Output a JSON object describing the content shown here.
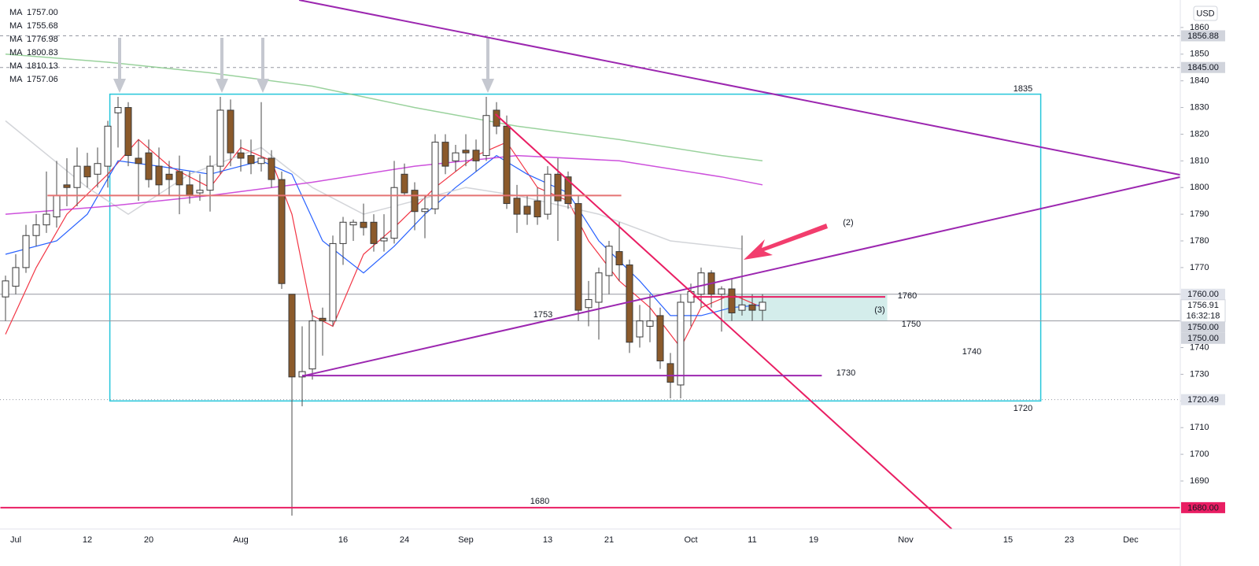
{
  "chart_data": {
    "type": "candlestick",
    "currency": "USD",
    "up_color": "#ffffff",
    "down_color": "#8b5a2b",
    "categories": [
      null,
      "Jul",
      null,
      null,
      null,
      null,
      null,
      null,
      "12",
      null,
      null,
      null,
      null,
      null,
      "20",
      null,
      null,
      null,
      null,
      null,
      null,
      null,
      null,
      "Aug",
      null,
      null,
      null,
      null,
      null,
      null,
      null,
      null,
      null,
      "16",
      null,
      null,
      null,
      null,
      null,
      "24",
      null,
      null,
      null,
      null,
      null,
      "Sep",
      null,
      null,
      null,
      null,
      null,
      null,
      null,
      "13",
      null,
      null,
      null,
      null,
      null,
      "21",
      null,
      null,
      null,
      null,
      null,
      null,
      null,
      "Oct",
      null,
      null,
      null,
      null,
      null,
      "11",
      null,
      null,
      null,
      null,
      null,
      "19",
      null,
      null,
      null,
      null,
      null,
      null,
      null,
      null,
      "Nov",
      null,
      null,
      null,
      null,
      null,
      null,
      null,
      null,
      null,
      "15",
      null,
      null,
      null,
      null,
      null,
      "23",
      null,
      null,
      null,
      null,
      null,
      "Dec",
      null,
      null,
      null,
      null
    ],
    "open": [
      1759,
      1763,
      1770,
      1782,
      1786,
      1789,
      1801,
      1800,
      1808,
      1805,
      1808,
      1828,
      1830,
      1811,
      1813,
      1808,
      1805,
      1806,
      1801,
      1798,
      1799,
      1808,
      1829,
      1813,
      1812,
      1809,
      1811,
      1803,
      1760,
      1729,
      1732,
      1751,
      1750,
      1779,
      1786,
      1787,
      1787,
      1780,
      1781,
      1805,
      1799,
      1791,
      1792,
      1817,
      1810,
      1814,
      1814,
      1812,
      1829,
      1823,
      1796,
      1793,
      1795,
      1790,
      1805,
      1804,
      1794,
      1755,
      1757,
      1767,
      1776,
      1771,
      1744,
      1748,
      1752,
      1734,
      1726,
      1757,
      1760,
      1768,
      1760,
      1762,
      1754,
      1756,
      1754,
      null,
      null,
      null,
      null,
      null,
      null,
      null,
      null,
      null,
      null,
      null,
      null,
      null,
      null,
      null,
      null,
      null,
      null,
      null,
      null,
      null,
      null,
      null,
      null,
      null,
      null,
      null,
      null,
      null,
      null,
      null,
      null,
      null,
      null,
      null,
      null,
      null,
      null,
      null,
      null
    ],
    "high": [
      1767,
      1775,
      1786,
      1790,
      1806,
      1810,
      1811,
      1815,
      1813,
      1815,
      1825,
      1834,
      1832,
      1818,
      1818,
      1815,
      1810,
      1812,
      1806,
      1805,
      1812,
      1834,
      1833,
      1818,
      1818,
      1832,
      1814,
      1806,
      1760,
      1748,
      1754,
      1755,
      1782,
      1789,
      1788,
      1794,
      1790,
      1790,
      1810,
      1809,
      1802,
      1797,
      1820,
      1820,
      1816,
      1820,
      1818,
      1834,
      1832,
      1827,
      1801,
      1797,
      1800,
      1808,
      1811,
      1806,
      1797,
      1765,
      1770,
      1780,
      1787,
      1773,
      1756,
      1760,
      1755,
      1738,
      1760,
      1764,
      1770,
      1769,
      1763,
      1766,
      1782,
      1760,
      1760,
      null,
      null,
      null,
      null,
      null,
      null,
      null,
      null,
      null,
      null,
      null,
      null,
      null,
      null,
      null,
      null,
      null,
      null,
      null,
      null,
      null,
      null,
      null,
      null,
      null,
      null,
      null,
      null,
      null,
      null,
      null,
      null,
      null,
      null,
      null,
      null,
      null,
      null,
      null,
      null
    ],
    "low": [
      1750,
      1760,
      1768,
      1778,
      1783,
      1785,
      1793,
      1793,
      1800,
      1800,
      1800,
      1815,
      1808,
      1795,
      1800,
      1797,
      1797,
      1790,
      1794,
      1795,
      1791,
      1805,
      1808,
      1806,
      1805,
      1806,
      1800,
      1762,
      1677,
      1718,
      1728,
      1737,
      1748,
      1771,
      1780,
      1782,
      1776,
      1776,
      1779,
      1797,
      1784,
      1781,
      1790,
      1805,
      1806,
      1808,
      1806,
      1810,
      1820,
      1792,
      1783,
      1786,
      1786,
      1788,
      1780,
      1792,
      1750,
      1748,
      1743,
      1760,
      1765,
      1738,
      1740,
      1742,
      1732,
      1721,
      1721,
      1748,
      1755,
      1755,
      1746,
      1750,
      1752,
      1750,
      1750,
      null,
      null,
      null,
      null,
      null,
      null,
      null,
      null,
      null,
      null,
      null,
      null,
      null,
      null,
      null,
      null,
      null,
      null,
      null,
      null,
      null,
      null,
      null,
      null,
      null,
      null,
      null,
      null,
      null,
      null,
      null,
      null,
      null,
      null,
      null,
      null,
      null,
      null,
      null,
      null
    ],
    "close": [
      1765,
      1770,
      1782,
      1786,
      1790,
      1797,
      1800,
      1808,
      1804,
      1809,
      1823,
      1830,
      1812,
      1809,
      1803,
      1801,
      1803,
      1801,
      1797,
      1799,
      1808,
      1829,
      1813,
      1811,
      1809,
      1811,
      1803,
      1764,
      1729,
      1731,
      1750,
      1750,
      1779,
      1787,
      1787,
      1785,
      1779,
      1781,
      1800,
      1798,
      1791,
      1792,
      1817,
      1808,
      1813,
      1813,
      1810,
      1827,
      1823,
      1794,
      1790,
      1790,
      1789,
      1805,
      1795,
      1794,
      1754,
      1758,
      1768,
      1778,
      1771,
      1742,
      1750,
      1750,
      1735,
      1727,
      1757,
      1761,
      1768,
      1760,
      1762,
      1753,
      1756,
      1754,
      1757,
      null,
      null,
      null,
      null,
      null,
      null,
      null,
      null,
      null,
      null,
      null,
      null,
      null,
      null,
      null,
      null,
      null,
      null,
      null,
      null,
      null,
      null,
      null,
      null,
      null,
      null,
      null,
      null,
      null,
      null,
      null,
      null,
      null,
      null,
      null,
      null,
      null,
      null,
      null,
      null
    ],
    "ylim": [
      1672,
      1870.3
    ],
    "yticks": [
      1690,
      1700,
      1710,
      1720,
      1730,
      1740,
      1750,
      1760,
      1770,
      1780,
      1790,
      1800,
      1810,
      1820,
      1830,
      1840,
      1850,
      1860
    ],
    "moving_averages": [
      {
        "name": "MA",
        "last": "1757.00",
        "color": "#f23645",
        "x": [
          0,
          3,
          6,
          10,
          13,
          16,
          20,
          23,
          26,
          28,
          30,
          32,
          35,
          38,
          42,
          46,
          49,
          52,
          55,
          57,
          60,
          63,
          66,
          68,
          71,
          74
        ],
        "values": [
          1745,
          1770,
          1790,
          1805,
          1818,
          1808,
          1800,
          1815,
          1810,
          1790,
          1752,
          1748,
          1775,
          1785,
          1800,
          1812,
          1817,
          1800,
          1795,
          1780,
          1765,
          1755,
          1740,
          1755,
          1760,
          1755
        ]
      },
      {
        "name": "MA",
        "last": "1755.68",
        "color": "#2962ff",
        "x": [
          0,
          5,
          8,
          11,
          15,
          20,
          25,
          28,
          31,
          35,
          38,
          41,
          44,
          48,
          51,
          55,
          58,
          62,
          65,
          68,
          71,
          74
        ],
        "values": [
          1775,
          1780,
          1790,
          1810,
          1808,
          1805,
          1810,
          1805,
          1780,
          1768,
          1778,
          1790,
          1800,
          1812,
          1805,
          1798,
          1780,
          1765,
          1752,
          1752,
          1755,
          1756
        ]
      },
      {
        "name": "MA",
        "last": "1776.98",
        "color": "#c8cad0",
        "x": [
          0,
          8,
          12,
          18,
          25,
          30,
          35,
          45,
          50,
          58,
          65,
          72
        ],
        "values": [
          1825,
          1800,
          1790,
          1805,
          1815,
          1800,
          1790,
          1800,
          1797,
          1790,
          1780,
          1777
        ]
      },
      {
        "name": "MA",
        "last": "1800.83",
        "color": "#c026d3",
        "x": [
          0,
          10,
          20,
          30,
          40,
          50,
          60,
          70,
          74
        ],
        "values": [
          1790,
          1793,
          1797,
          1802,
          1808,
          1812,
          1810,
          1804,
          1801
        ]
      },
      {
        "name": "MA",
        "last": "1810.13",
        "color": "#81c784",
        "x": [
          0,
          10,
          20,
          30,
          40,
          50,
          60,
          70,
          74
        ],
        "values": [
          1850,
          1847,
          1843,
          1838,
          1830,
          1823,
          1818,
          1812,
          1810
        ]
      },
      {
        "name": "MA",
        "last": "1757.06",
        "color": "#b2b5be"
      }
    ],
    "drawings": [
      {
        "type": "rect",
        "color": "#26c6da",
        "x": [
          10.2,
          101.2
        ],
        "y": [
          1835,
          1720
        ]
      },
      {
        "type": "rect",
        "color": "#26a69a",
        "fill": "rgba(38,166,154,0.2)",
        "x": [
          70.2,
          86.2
        ],
        "y": [
          1760,
          1750
        ]
      },
      {
        "type": "line",
        "color": "#9c27b0",
        "x": [
          28.7,
          114.8
        ],
        "y": [
          1870.3,
          1804.8
        ]
      },
      {
        "type": "line",
        "color": "#9c27b0",
        "x": [
          29,
          114.8
        ],
        "y": [
          1729.3,
          1803.9
        ]
      },
      {
        "type": "line",
        "color": "#e91e63",
        "x": [
          47.9,
          92.5
        ],
        "y": [
          1827.5,
          1672
        ]
      },
      {
        "type": "line",
        "color": "#9c27b0",
        "x": [
          29,
          79.8
        ],
        "y": [
          1729.5,
          1729.5
        ]
      },
      {
        "type": "line",
        "color": "#e91e63",
        "x": [
          67.2,
          86
        ],
        "y": [
          1759,
          1759
        ]
      },
      {
        "type": "line",
        "color": "#e57373",
        "x": [
          4.1,
          60.2
        ],
        "y": [
          1797,
          1797
        ]
      },
      {
        "type": "line",
        "color": "#e91e63",
        "x": [
          -0.5,
          114.8
        ],
        "y": [
          1680,
          1680
        ]
      }
    ],
    "annotations": [
      {
        "text": "(2)",
        "color": "#e91e63"
      },
      {
        "text": "1760",
        "color": "#e91e63"
      },
      {
        "text": "(3)",
        "color": "#e91e63"
      },
      {
        "text": "1750",
        "color": "#e91e63"
      },
      {
        "text": "1740",
        "color": "#2962ff"
      },
      {
        "text": "1753",
        "color": "#4caf50"
      },
      {
        "text": "1730",
        "color": "#e91e63"
      },
      {
        "text": "1680",
        "color": "#2962ff"
      },
      {
        "text": "1835",
        "color": "#00897b"
      },
      {
        "text": "1720",
        "color": "#00897b"
      }
    ],
    "price_labels": [
      {
        "value": 1856.88,
        "fill": "#d1d4dc",
        "line": "dashed"
      },
      {
        "value": 1845,
        "label": "1845.00",
        "fill": "#d1d4dc",
        "line": "dashed"
      },
      {
        "value": 1760,
        "label": "1760.00",
        "fill": "#e0e3eb",
        "line": "solid"
      },
      {
        "value": 1756.91,
        "fill": "#ffffff",
        "line": "none",
        "countdown": "16:32:18"
      },
      {
        "value": 1750,
        "label": "1750.00",
        "fill": "#d1d4dc",
        "line": "solid"
      },
      {
        "value": 1750,
        "label": "1750.00",
        "fill": "#d1d4dc",
        "line": "none"
      },
      {
        "value": 1720.49,
        "fill": "#e0e3eb",
        "line": "dotted"
      },
      {
        "value": 1680,
        "label": "1680.00",
        "fill": "#e91e63",
        "text_color": "#ffffff",
        "line": "none"
      }
    ]
  }
}
